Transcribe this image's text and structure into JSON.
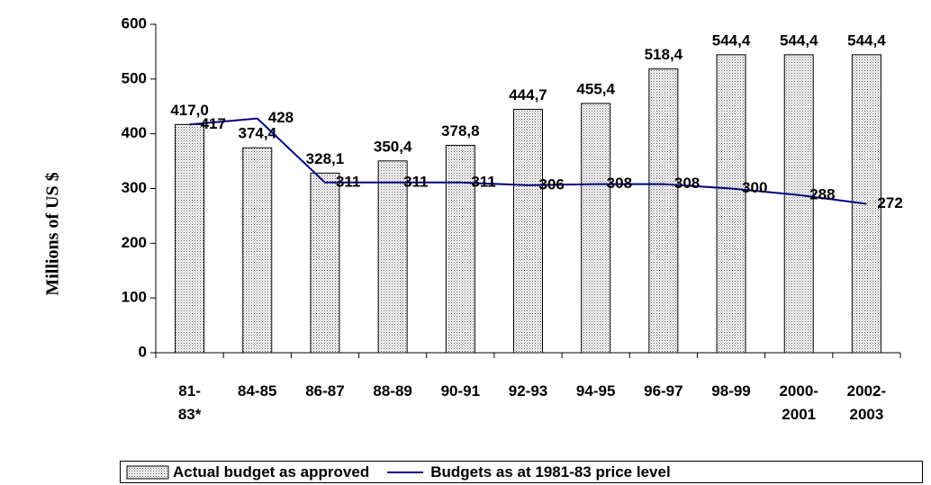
{
  "chart_data": {
    "type": "bar_line",
    "y_label": "Millions of US $",
    "categories": [
      "81-\n83*",
      "84-85",
      "86-87",
      "88-89",
      "90-91",
      "92-93",
      "94-95",
      "96-97",
      "98-99",
      "2000-\n2001",
      "2002-\n2003"
    ],
    "series": [
      {
        "name": "Actual budget as approved",
        "type": "bar",
        "color": "#bbbbbb",
        "values": [
          417.0,
          374.4,
          328.1,
          350.4,
          378.8,
          444.7,
          455.4,
          518.4,
          544.4,
          544.4,
          544.4
        ],
        "value_labels": [
          "417,0",
          "374,4",
          "328,1",
          "350,4",
          "378,8",
          "444,7",
          "455,4",
          "518,4",
          "544,4",
          "544,4",
          "544,4"
        ]
      },
      {
        "name": "Budgets as at 1981-83 price level",
        "type": "line",
        "color": "#000080",
        "values": [
          417,
          428,
          311,
          311,
          311,
          306,
          308,
          308,
          300,
          288,
          272
        ]
      }
    ],
    "ylim": [
      0,
      600
    ],
    "yticks": [
      0,
      100,
      200,
      300,
      400,
      500,
      600
    ],
    "grid": false
  }
}
